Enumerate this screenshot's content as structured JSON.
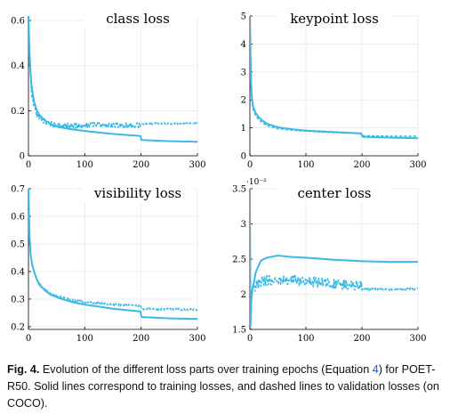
{
  "figure": {
    "line_color": "#3bb8e8",
    "panels": [
      {
        "key": "class",
        "title": "class loss",
        "exponent_label": "",
        "xlim": [
          0,
          300
        ],
        "ylim": [
          0,
          0.62
        ],
        "xticks": [
          0,
          100,
          200,
          300
        ],
        "xtick_labels": [
          "0",
          "100",
          "200",
          "300"
        ],
        "yticks": [
          0,
          0.2,
          0.4,
          0.6
        ],
        "ytick_labels": [
          "0",
          "0.2",
          "0.4",
          "0.6"
        ]
      },
      {
        "key": "keypoint",
        "title": "keypoint loss",
        "exponent_label": "",
        "xlim": [
          0,
          300
        ],
        "ylim": [
          0,
          5
        ],
        "xticks": [
          0,
          100,
          200,
          300
        ],
        "xtick_labels": [
          "0",
          "100",
          "200",
          "300"
        ],
        "yticks": [
          0,
          1,
          2,
          3,
          4,
          5
        ],
        "ytick_labels": [
          "0",
          "1",
          "2",
          "3",
          "4",
          "5"
        ]
      },
      {
        "key": "visibility",
        "title": "visibility loss",
        "exponent_label": "",
        "xlim": [
          0,
          300
        ],
        "ylim": [
          0.19,
          0.7
        ],
        "xticks": [
          0,
          100,
          200,
          300
        ],
        "xtick_labels": [
          "0",
          "100",
          "200",
          "300"
        ],
        "yticks": [
          0.2,
          0.3,
          0.4,
          0.5,
          0.6,
          0.7
        ],
        "ytick_labels": [
          "0.2",
          "0.3",
          "0.4",
          "0.5",
          "0.6",
          "0.7"
        ]
      },
      {
        "key": "center",
        "title": "center loss",
        "exponent_label": "·10⁻²",
        "xlim": [
          0,
          300
        ],
        "ylim": [
          1.5,
          3.5
        ],
        "xticks": [
          0,
          100,
          200,
          300
        ],
        "xtick_labels": [
          "0",
          "100",
          "200",
          "300"
        ],
        "yticks": [
          1.5,
          2,
          2.5,
          3,
          3.5
        ],
        "ytick_labels": [
          "1.5",
          "2",
          "2.5",
          "3",
          "3.5"
        ]
      }
    ]
  },
  "chart_data": [
    {
      "type": "line",
      "title": "class loss",
      "xlabel": "",
      "ylabel": "",
      "xlim": [
        0,
        300
      ],
      "ylim": [
        0,
        0.62
      ],
      "grid": true,
      "series": [
        {
          "style": "solid",
          "x": [
            0,
            2,
            4,
            6,
            10,
            15,
            20,
            30,
            40,
            50,
            70,
            100,
            150,
            199,
            200,
            201,
            220,
            250,
            300
          ],
          "values": [
            0.62,
            0.45,
            0.36,
            0.3,
            0.24,
            0.2,
            0.18,
            0.155,
            0.14,
            0.13,
            0.12,
            0.11,
            0.097,
            0.088,
            0.075,
            0.07,
            0.068,
            0.065,
            0.062
          ]
        },
        {
          "style": "dashed",
          "x": [
            0,
            2,
            4,
            6,
            10,
            15,
            20,
            30,
            40,
            60,
            80,
            100,
            130,
            160,
            199,
            200,
            201,
            220,
            250,
            300
          ],
          "values": [
            0.62,
            0.42,
            0.34,
            0.27,
            0.22,
            0.185,
            0.17,
            0.15,
            0.14,
            0.135,
            0.133,
            0.135,
            0.137,
            0.135,
            0.135,
            0.14,
            0.14,
            0.142,
            0.143,
            0.145
          ]
        }
      ]
    },
    {
      "type": "line",
      "title": "keypoint loss",
      "xlabel": "",
      "ylabel": "",
      "xlim": [
        0,
        300
      ],
      "ylim": [
        0,
        5
      ],
      "grid": true,
      "series": [
        {
          "style": "solid",
          "x": [
            0,
            2,
            4,
            6,
            10,
            15,
            20,
            30,
            50,
            75,
            100,
            150,
            199,
            200,
            201,
            250,
            300
          ],
          "values": [
            5,
            2.6,
            2.0,
            1.75,
            1.55,
            1.4,
            1.3,
            1.15,
            1.02,
            0.95,
            0.9,
            0.85,
            0.8,
            0.72,
            0.68,
            0.65,
            0.63
          ]
        },
        {
          "style": "dashed",
          "x": [
            0,
            2,
            4,
            6,
            10,
            15,
            20,
            30,
            50,
            75,
            100,
            150,
            199,
            200,
            201,
            250,
            300
          ],
          "values": [
            5,
            2.5,
            1.9,
            1.65,
            1.45,
            1.32,
            1.22,
            1.08,
            0.97,
            0.92,
            0.88,
            0.83,
            0.8,
            0.74,
            0.72,
            0.7,
            0.7
          ]
        }
      ]
    },
    {
      "type": "line",
      "title": "visibility loss",
      "xlabel": "",
      "ylabel": "",
      "xlim": [
        0,
        300
      ],
      "ylim": [
        0.19,
        0.7
      ],
      "grid": true,
      "series": [
        {
          "style": "solid",
          "x": [
            0,
            2,
            4,
            6,
            10,
            15,
            20,
            30,
            40,
            60,
            80,
            100,
            150,
            199,
            200,
            201,
            250,
            300
          ],
          "values": [
            0.7,
            0.52,
            0.46,
            0.43,
            0.4,
            0.37,
            0.35,
            0.33,
            0.315,
            0.3,
            0.288,
            0.28,
            0.265,
            0.255,
            0.24,
            0.235,
            0.23,
            0.228
          ]
        },
        {
          "style": "dashed",
          "x": [
            0,
            2,
            4,
            6,
            10,
            15,
            20,
            30,
            40,
            60,
            80,
            100,
            150,
            199,
            200,
            201,
            250,
            300
          ],
          "values": [
            0.7,
            0.52,
            0.46,
            0.43,
            0.4,
            0.37,
            0.355,
            0.335,
            0.32,
            0.305,
            0.295,
            0.29,
            0.28,
            0.275,
            0.265,
            0.264,
            0.263,
            0.262
          ]
        }
      ]
    },
    {
      "type": "line",
      "title": "center loss",
      "xlabel": "",
      "ylabel": "",
      "y_scale_factor": "10^-2",
      "xlim": [
        0,
        300
      ],
      "ylim": [
        1.5,
        3.5
      ],
      "grid": true,
      "series": [
        {
          "style": "solid",
          "x": [
            0,
            1,
            2,
            3,
            5,
            8,
            10,
            15,
            20,
            30,
            50,
            75,
            100,
            150,
            200,
            250,
            300
          ],
          "values": [
            3.5,
            1.55,
            1.8,
            2.0,
            2.1,
            2.2,
            2.3,
            2.4,
            2.48,
            2.52,
            2.55,
            2.53,
            2.52,
            2.49,
            2.47,
            2.46,
            2.46
          ]
        },
        {
          "style": "dashed",
          "x": [
            0,
            1,
            2,
            3,
            5,
            8,
            10,
            15,
            20,
            30,
            50,
            75,
            100,
            150,
            199,
            200,
            201,
            250,
            300
          ],
          "values": [
            3.5,
            1.6,
            1.75,
            1.95,
            2.05,
            2.1,
            2.12,
            2.15,
            2.18,
            2.2,
            2.2,
            2.2,
            2.18,
            2.15,
            2.12,
            2.08,
            2.07,
            2.07,
            2.08
          ]
        }
      ]
    }
  ],
  "caption": {
    "fig_label": "Fig. 4.",
    "text_before_ref": " Evolution of the different loss parts over training epochs (Equation ",
    "equation_ref": "4",
    "text_after_ref": ") for POET-R50. Solid lines correspond to training losses, and dashed lines to validation losses (on COCO).",
    "link_color": "#1a4fd6"
  }
}
